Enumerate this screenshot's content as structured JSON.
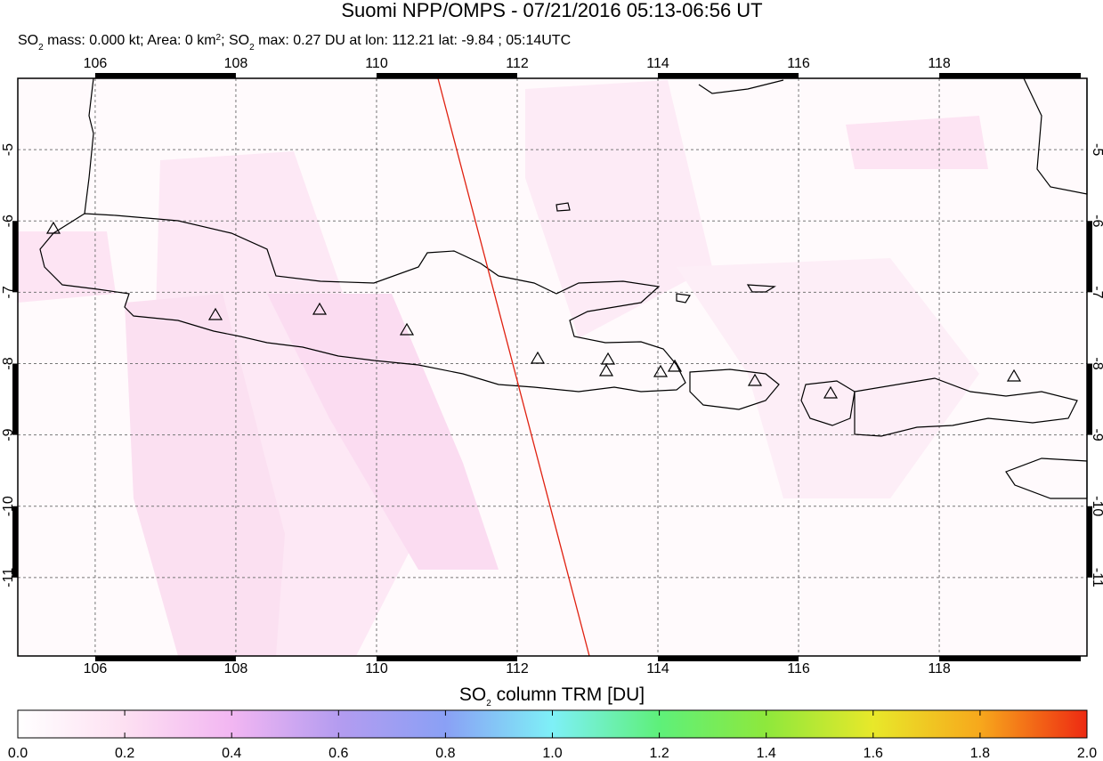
{
  "map": {
    "title": "Suomi NPP/OMPS - 07/21/2016 05:13-06:56 UT",
    "subtitle": [
      "SO",
      "2",
      " mass: 0.000 kt; Area: 0 km",
      "2",
      "; SO",
      "2",
      " max: 0.27 DU at lon: 112.21 lat: -9.84 ; 05:14UTC"
    ],
    "xlim": [
      104.9,
      120.1
    ],
    "ylim": [
      -12.1,
      -4.0
    ],
    "xticks": [
      106,
      108,
      110,
      112,
      114,
      116,
      118
    ],
    "yticks": [
      -5,
      -6,
      -7,
      -8,
      -9,
      -10,
      -11
    ],
    "colorbar": {
      "label": [
        "SO",
        "2",
        " column TRM [DU]"
      ],
      "lim": [
        0,
        2
      ],
      "ticks": [
        {
          "value": 0,
          "label": "0.0"
        },
        {
          "value": 0.2,
          "label": "0.2"
        },
        {
          "value": 0.4,
          "label": "0.4"
        },
        {
          "value": 0.6,
          "label": "0.6"
        },
        {
          "value": 0.8,
          "label": "0.8"
        },
        {
          "value": 1,
          "label": "1.0"
        },
        {
          "value": 1.2,
          "label": "1.2"
        },
        {
          "value": 1.4,
          "label": "1.4"
        },
        {
          "value": 1.6,
          "label": "1.6"
        },
        {
          "value": 1.8,
          "label": "1.8"
        },
        {
          "value": 2,
          "label": "2.0"
        }
      ]
    }
  }
}
